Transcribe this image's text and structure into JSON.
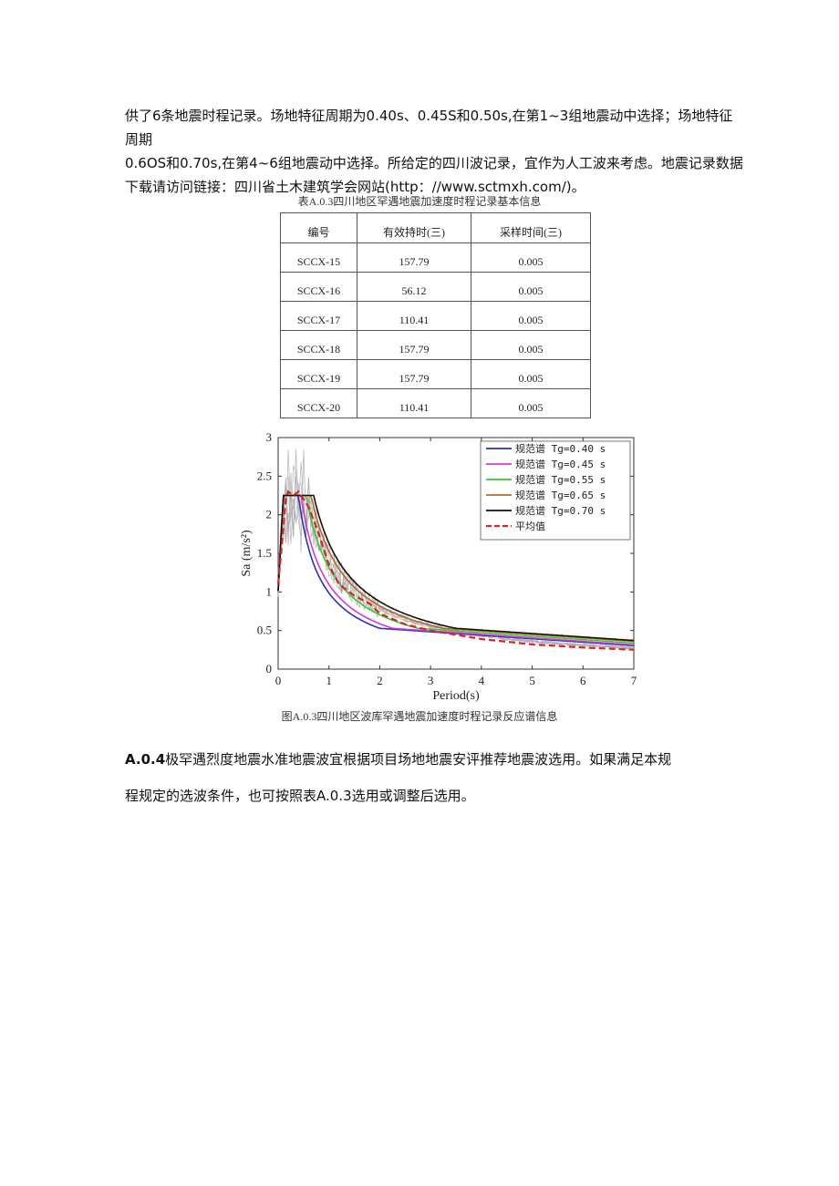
{
  "intro_lines": [
    "供了6条地震时程记录。场地特征周期为0.40s、0.45S和0.50s,在第1~3组地震动中选择；场地特征周期",
    "0.6OS和0.70s,在第4~6组地震动中选择。所给定的四川波记录，宜作为人工波来考虑。地震记录数据",
    "下载请访问链接：四川省土木建筑学会网站(http：//www.sctmxh.com/)。"
  ],
  "table": {
    "caption": "表A.0.3四川地区罕遇地震加速度时程记录基本信息",
    "headers": [
      "编号",
      "有效持时(三)",
      "采样时间(三)"
    ],
    "rows": [
      [
        "SCCX-15",
        "157.79",
        "0.005"
      ],
      [
        "SCCX-16",
        "56.12",
        "0.005"
      ],
      [
        "SCCX-17",
        "110.41",
        "0.005"
      ],
      [
        "SCCX-18",
        "157.79",
        "0.005"
      ],
      [
        "SCCX-19",
        "157.79",
        "0.005"
      ],
      [
        "SCCX-20",
        "110.41",
        "0.005"
      ]
    ]
  },
  "chart_data": {
    "type": "line",
    "xlabel": "Period(s)",
    "ylabel": "Sa (m/s²)",
    "xlim": [
      0,
      7
    ],
    "ylim": [
      0,
      3
    ],
    "xticks": [
      "0",
      "1",
      "2",
      "3",
      "4",
      "5",
      "6",
      "7"
    ],
    "yticks": [
      "0",
      "0.5",
      "1",
      "1.5",
      "2",
      "2.5",
      "3"
    ],
    "grid": false,
    "legend_position": "top-right",
    "series": [
      {
        "name": "规范谱 Tg=0.40 s",
        "color": "#2233bb",
        "Tg": 0.4,
        "peak": 2.25
      },
      {
        "name": "规范谱 Tg=0.45 s",
        "color": "#dd33dd",
        "Tg": 0.45,
        "peak": 2.25
      },
      {
        "name": "规范谱 Tg=0.55 s",
        "color": "#33cc33",
        "Tg": 0.55,
        "peak": 2.25
      },
      {
        "name": "规范谱 Tg=0.65 s",
        "color": "#b86a2a",
        "Tg": 0.65,
        "peak": 2.25
      },
      {
        "name": "规范谱 Tg=0.70 s",
        "color": "#111111",
        "Tg": 0.7,
        "peak": 2.25
      },
      {
        "name": "平均值",
        "color": "#dd2222",
        "dashed": true,
        "x": [
          0,
          0.1,
          0.15,
          0.2,
          0.3,
          0.4,
          0.5,
          0.6,
          0.8,
          1.0,
          1.2,
          1.5,
          1.8,
          2.0,
          2.5,
          3,
          4,
          5,
          6,
          7
        ],
        "y": [
          1.1,
          1.8,
          2.2,
          2.3,
          2.25,
          2.3,
          2.2,
          2.1,
          1.75,
          1.35,
          1.1,
          0.95,
          0.85,
          0.72,
          0.58,
          0.5,
          0.39,
          0.32,
          0.28,
          0.25
        ]
      }
    ]
  },
  "figure_caption": "图A.0.3四川地区波库罕遇地震加速度时程记录反应谱信息",
  "para2": {
    "label": "A.0.4",
    "text": "极罕遇烈度地震水准地震波宜根据项目场地地震安评推荐地震波选用。如果满足本规",
    "line2": "程规定的选波条件，也可按照表A.0.3选用或调整后选用。"
  }
}
